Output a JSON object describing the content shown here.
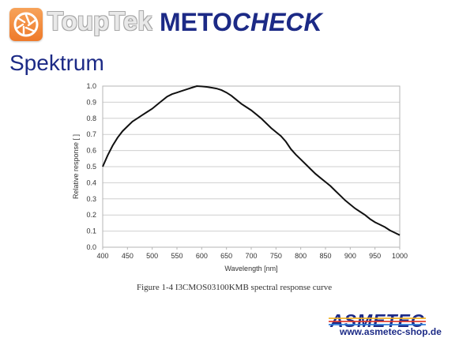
{
  "header": {
    "brand_name": "ToupTek",
    "product_bold": "METO",
    "product_italic": "CHECK"
  },
  "page_title": "Spektrum",
  "footer": {
    "logo_text": "ASMETEC",
    "url": "www.asmetec-shop.de"
  },
  "icons": {
    "brand_logo": "aperture-icon"
  },
  "colors": {
    "brand_orange": "#ef7d2e",
    "title_blue": "#1c2a86",
    "curve": "#111111"
  },
  "chart_data": {
    "type": "line",
    "caption": "Figure 1-4 I3CMOS03100KMB spectral response curve",
    "xlabel": "Wavelength [nm]",
    "ylabel": "Relative response [ ]",
    "xlim": [
      400,
      1000
    ],
    "ylim": [
      0.0,
      1.0
    ],
    "xticks": [
      400,
      450,
      500,
      550,
      600,
      650,
      700,
      750,
      800,
      850,
      900,
      950,
      1000
    ],
    "yticks": [
      "0.0",
      "0.1",
      "0.2",
      "0.3",
      "0.4",
      "0.5",
      "0.6",
      "0.7",
      "0.8",
      "0.9",
      "1.0"
    ],
    "grid": "horizontal",
    "series": [
      {
        "x": [
          400,
          410,
          420,
          430,
          440,
          450,
          460,
          470,
          480,
          490,
          500,
          510,
          520,
          530,
          540,
          550,
          560,
          570,
          580,
          590,
          600,
          610,
          620,
          630,
          640,
          650,
          660,
          670,
          680,
          690,
          700,
          710,
          720,
          730,
          740,
          750,
          760,
          770,
          780,
          790,
          800,
          810,
          820,
          830,
          840,
          850,
          860,
          870,
          880,
          890,
          900,
          910,
          920,
          930,
          940,
          950,
          960,
          970,
          980,
          990,
          1000
        ],
        "y": [
          0.5,
          0.57,
          0.63,
          0.68,
          0.72,
          0.75,
          0.78,
          0.8,
          0.82,
          0.84,
          0.86,
          0.885,
          0.91,
          0.935,
          0.95,
          0.96,
          0.97,
          0.98,
          0.99,
          1.0,
          0.998,
          0.995,
          0.99,
          0.985,
          0.975,
          0.96,
          0.94,
          0.915,
          0.89,
          0.87,
          0.85,
          0.825,
          0.8,
          0.77,
          0.74,
          0.715,
          0.69,
          0.655,
          0.61,
          0.575,
          0.545,
          0.515,
          0.485,
          0.455,
          0.43,
          0.405,
          0.38,
          0.35,
          0.32,
          0.29,
          0.265,
          0.24,
          0.22,
          0.2,
          0.175,
          0.155,
          0.14,
          0.125,
          0.105,
          0.09,
          0.075
        ]
      }
    ]
  }
}
